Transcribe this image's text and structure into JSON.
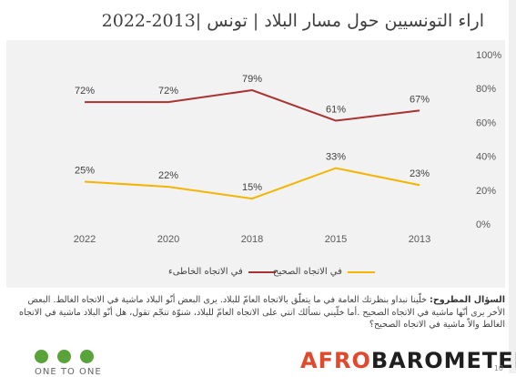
{
  "title": "اراء التونسيين حول مسار البلاد | تونس |2013-2022",
  "chart_data": {
    "type": "line",
    "categories": [
      "2022",
      "2020",
      "2018",
      "2015",
      "2013"
    ],
    "series": [
      {
        "name": "في الاتجاه الخاطىء",
        "values": [
          72,
          72,
          79,
          61,
          67
        ],
        "color": "#a93232"
      },
      {
        "name": "في الاتجاه الصحيح",
        "values": [
          25,
          22,
          15,
          33,
          23
        ],
        "color": "#f5b400"
      }
    ],
    "yticks": [
      "0%",
      "20%",
      "40%",
      "60%",
      "80%",
      "100%"
    ],
    "ylim": [
      0,
      100
    ],
    "value_suffix": "%"
  },
  "question_label": "السؤال المطروح:",
  "question_text": "خلّينا نبداو بنظرتك العامة في ما يتعلّق بالاتجاه العامّ للبلاد. يرى البعض أنّو البلاد ماشية في الاتجاه الغالط. البعض الأخر يرى أنّها ماشية في الاتجاه الصحيح .أما خلّيني نسألك انتي على الاتجاه العامّ للبلاد، شنوّة تنجّم تقول، هل أنّو البلاد ماشية في الاتجاه الغالط والاّ ماشية في الاتجاه الصحيح؟",
  "footer": {
    "one_to_one": "ONE TO ONE",
    "brand_part1": "AFRO",
    "brand_part2": "BAROMETER",
    "page_number": "10"
  }
}
